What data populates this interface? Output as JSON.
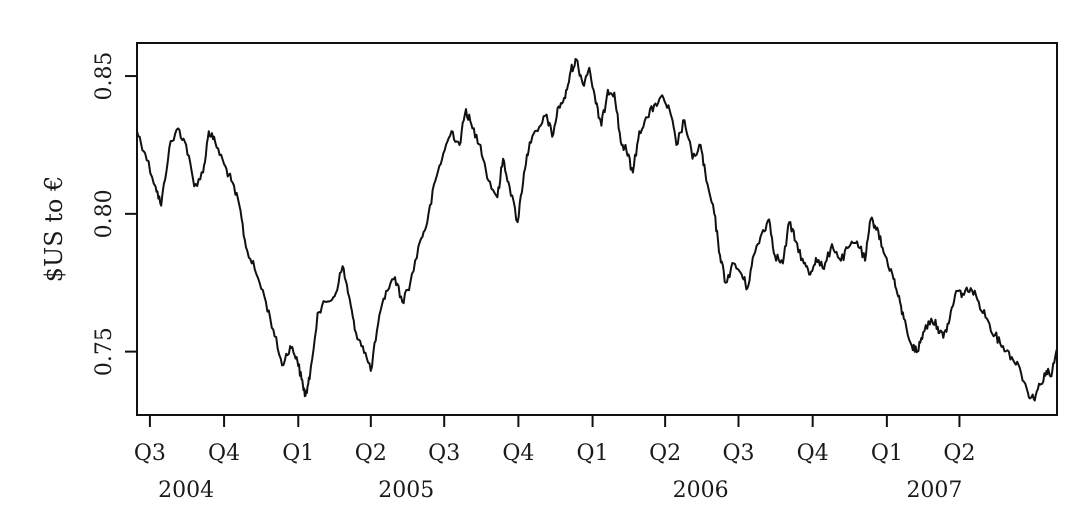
{
  "chart_data": {
    "type": "line",
    "title": "",
    "xlabel": "",
    "ylabel": "$US to €",
    "ylim": [
      0.727,
      0.862
    ],
    "xlim": [
      "2004-06-15",
      "2007-07-31"
    ],
    "yticks": [
      {
        "value": 0.75,
        "label": "0.75"
      },
      {
        "value": 0.8,
        "label": "0.80"
      },
      {
        "value": 0.85,
        "label": "0.85"
      }
    ],
    "xticks": [
      {
        "date": "2004-07-01",
        "label": "Q3"
      },
      {
        "date": "2004-10-01",
        "label": "Q4"
      },
      {
        "date": "2005-01-01",
        "label": "Q1"
      },
      {
        "date": "2005-04-01",
        "label": "Q2"
      },
      {
        "date": "2005-07-01",
        "label": "Q3"
      },
      {
        "date": "2005-10-01",
        "label": "Q4"
      },
      {
        "date": "2006-01-01",
        "label": "Q1"
      },
      {
        "date": "2006-04-01",
        "label": "Q2"
      },
      {
        "date": "2006-07-01",
        "label": "Q3"
      },
      {
        "date": "2006-10-01",
        "label": "Q4"
      },
      {
        "date": "2007-01-01",
        "label": "Q1"
      },
      {
        "date": "2007-04-01",
        "label": "Q2"
      }
    ],
    "year_labels": [
      {
        "date": "2004-08-15",
        "label": "2004"
      },
      {
        "date": "2005-05-15",
        "label": "2005"
      },
      {
        "date": "2006-05-15",
        "label": "2006"
      },
      {
        "date": "2007-03-01",
        "label": "2007"
      }
    ],
    "grid": false,
    "legend": "none",
    "line_color": "#111111",
    "series": [
      {
        "points": [
          [
            "2004-06-15",
            0.83
          ],
          [
            "2004-06-25",
            0.822
          ],
          [
            "2004-07-08",
            0.81
          ],
          [
            "2004-07-15",
            0.803
          ],
          [
            "2004-07-25",
            0.824
          ],
          [
            "2004-08-05",
            0.831
          ],
          [
            "2004-08-15",
            0.825
          ],
          [
            "2004-08-25",
            0.81
          ],
          [
            "2004-09-05",
            0.815
          ],
          [
            "2004-09-12",
            0.83
          ],
          [
            "2004-09-20",
            0.826
          ],
          [
            "2004-10-01",
            0.818
          ],
          [
            "2004-10-10",
            0.812
          ],
          [
            "2004-10-20",
            0.803
          ],
          [
            "2004-10-28",
            0.788
          ],
          [
            "2004-11-08",
            0.78
          ],
          [
            "2004-11-20",
            0.77
          ],
          [
            "2004-12-01",
            0.758
          ],
          [
            "2004-12-12",
            0.745
          ],
          [
            "2004-12-22",
            0.752
          ],
          [
            "2004-12-30",
            0.748
          ],
          [
            "2005-01-05",
            0.74
          ],
          [
            "2005-01-10",
            0.734
          ],
          [
            "2005-01-15",
            0.74
          ],
          [
            "2005-01-25",
            0.764
          ],
          [
            "2005-02-05",
            0.768
          ],
          [
            "2005-02-15",
            0.77
          ],
          [
            "2005-02-25",
            0.781
          ],
          [
            "2005-03-05",
            0.77
          ],
          [
            "2005-03-12",
            0.758
          ],
          [
            "2005-03-22",
            0.752
          ],
          [
            "2005-04-01",
            0.743
          ],
          [
            "2005-04-10",
            0.76
          ],
          [
            "2005-04-20",
            0.772
          ],
          [
            "2005-05-01",
            0.777
          ],
          [
            "2005-05-10",
            0.768
          ],
          [
            "2005-05-20",
            0.775
          ],
          [
            "2005-06-01",
            0.79
          ],
          [
            "2005-06-10",
            0.797
          ],
          [
            "2005-06-20",
            0.812
          ],
          [
            "2005-06-30",
            0.822
          ],
          [
            "2005-07-10",
            0.83
          ],
          [
            "2005-07-20",
            0.825
          ],
          [
            "2005-07-28",
            0.838
          ],
          [
            "2005-08-05",
            0.831
          ],
          [
            "2005-08-15",
            0.825
          ],
          [
            "2005-08-25",
            0.812
          ],
          [
            "2005-09-05",
            0.806
          ],
          [
            "2005-09-12",
            0.82
          ],
          [
            "2005-09-20",
            0.81
          ],
          [
            "2005-09-30",
            0.797
          ],
          [
            "2005-10-08",
            0.815
          ],
          [
            "2005-10-15",
            0.826
          ],
          [
            "2005-10-25",
            0.83
          ],
          [
            "2005-11-05",
            0.836
          ],
          [
            "2005-11-12",
            0.828
          ],
          [
            "2005-11-20",
            0.839
          ],
          [
            "2005-11-28",
            0.842
          ],
          [
            "2005-12-05",
            0.852
          ],
          [
            "2005-12-12",
            0.856
          ],
          [
            "2005-12-20",
            0.847
          ],
          [
            "2005-12-28",
            0.853
          ],
          [
            "2006-01-05",
            0.84
          ],
          [
            "2006-01-12",
            0.832
          ],
          [
            "2006-01-20",
            0.845
          ],
          [
            "2006-01-28",
            0.844
          ],
          [
            "2006-02-05",
            0.826
          ],
          [
            "2006-02-12",
            0.823
          ],
          [
            "2006-02-20",
            0.815
          ],
          [
            "2006-02-28",
            0.83
          ],
          [
            "2006-03-10",
            0.835
          ],
          [
            "2006-03-20",
            0.84
          ],
          [
            "2006-03-30",
            0.842
          ],
          [
            "2006-04-08",
            0.836
          ],
          [
            "2006-04-15",
            0.825
          ],
          [
            "2006-04-25",
            0.834
          ],
          [
            "2006-05-05",
            0.82
          ],
          [
            "2006-05-15",
            0.825
          ],
          [
            "2006-05-22",
            0.812
          ],
          [
            "2006-06-01",
            0.8
          ],
          [
            "2006-06-08",
            0.785
          ],
          [
            "2006-06-15",
            0.775
          ],
          [
            "2006-06-25",
            0.782
          ],
          [
            "2006-07-05",
            0.778
          ],
          [
            "2006-07-12",
            0.773
          ],
          [
            "2006-07-20",
            0.785
          ],
          [
            "2006-07-30",
            0.793
          ],
          [
            "2006-08-08",
            0.798
          ],
          [
            "2006-08-15",
            0.785
          ],
          [
            "2006-08-25",
            0.782
          ],
          [
            "2006-09-02",
            0.797
          ],
          [
            "2006-09-10",
            0.79
          ],
          [
            "2006-09-20",
            0.782
          ],
          [
            "2006-09-28",
            0.778
          ],
          [
            "2006-10-05",
            0.784
          ],
          [
            "2006-10-15",
            0.78
          ],
          [
            "2006-10-25",
            0.789
          ],
          [
            "2006-11-05",
            0.783
          ],
          [
            "2006-11-15",
            0.788
          ],
          [
            "2006-11-25",
            0.79
          ],
          [
            "2006-12-05",
            0.783
          ],
          [
            "2006-12-12",
            0.798
          ],
          [
            "2006-12-20",
            0.795
          ],
          [
            "2006-12-28",
            0.786
          ],
          [
            "2007-01-08",
            0.778
          ],
          [
            "2007-01-15",
            0.77
          ],
          [
            "2007-01-22",
            0.762
          ],
          [
            "2007-02-01",
            0.752
          ],
          [
            "2007-02-08",
            0.75
          ],
          [
            "2007-02-15",
            0.757
          ],
          [
            "2007-02-25",
            0.762
          ],
          [
            "2007-03-05",
            0.759
          ],
          [
            "2007-03-12",
            0.755
          ],
          [
            "2007-03-20",
            0.762
          ],
          [
            "2007-03-28",
            0.772
          ],
          [
            "2007-04-05",
            0.771
          ],
          [
            "2007-04-15",
            0.773
          ],
          [
            "2007-04-25",
            0.768
          ],
          [
            "2007-05-05",
            0.762
          ],
          [
            "2007-05-15",
            0.756
          ],
          [
            "2007-05-25",
            0.752
          ],
          [
            "2007-06-05",
            0.748
          ],
          [
            "2007-06-15",
            0.744
          ],
          [
            "2007-06-25",
            0.735
          ],
          [
            "2007-07-02",
            0.733
          ],
          [
            "2007-07-10",
            0.738
          ],
          [
            "2007-07-18",
            0.743
          ],
          [
            "2007-07-24",
            0.741
          ],
          [
            "2007-07-31",
            0.751
          ]
        ]
      }
    ]
  }
}
